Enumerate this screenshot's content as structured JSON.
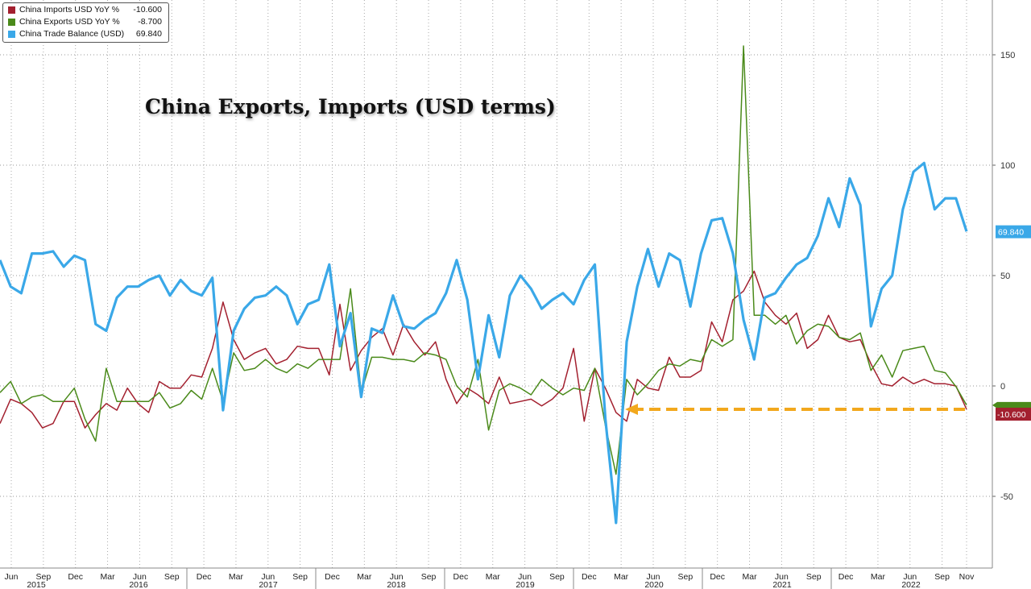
{
  "title": "China Exports, Imports (USD terms)",
  "legend": [
    {
      "name": "China Imports USD YoY %",
      "value": "-10.600",
      "color": "#a3202f"
    },
    {
      "name": "China Exports USD YoY %",
      "value": "-8.700",
      "color": "#4a8a1a"
    },
    {
      "name": "China Trade Balance (USD)",
      "value": "69.840",
      "color": "#3aa8e8"
    }
  ],
  "chart_data": {
    "type": "line",
    "ylim": [
      -75,
      175
    ],
    "y_ticks": [
      150,
      100,
      50,
      0,
      -50
    ],
    "grid": true,
    "x_month_labels": [
      "Jun",
      "Sep",
      "Dec",
      "Mar",
      "Jun",
      "Sep",
      "Dec",
      "Mar",
      "Jun",
      "Sep",
      "Dec",
      "Mar",
      "Jun",
      "Sep",
      "Dec",
      "Mar",
      "Jun",
      "Sep",
      "Dec",
      "Mar",
      "Jun",
      "Sep",
      "Dec",
      "Mar",
      "Jun",
      "Sep",
      "Dec",
      "Mar",
      "Jun",
      "Sep",
      "Nov"
    ],
    "x_year_labels": [
      "2015",
      "2016",
      "2017",
      "2018",
      "2019",
      "2020",
      "2021",
      "2022"
    ],
    "series": [
      {
        "name": "China Trade Balance (USD)",
        "color": "#3aa8e8",
        "last_value_label": "69.840",
        "values": [
          57,
          45,
          42,
          60,
          60,
          61,
          54,
          59,
          57,
          28,
          25,
          40,
          45,
          45,
          48,
          50,
          41,
          48,
          43,
          41,
          49,
          -11,
          25,
          35,
          40,
          41,
          45,
          41,
          28,
          37,
          39,
          55,
          18,
          33,
          -5,
          26,
          24,
          41,
          27,
          26,
          30,
          33,
          42,
          57,
          39,
          3,
          32,
          13,
          41,
          50,
          44,
          35,
          39,
          42,
          37,
          48,
          55,
          -15,
          -62,
          20,
          45,
          62,
          45,
          60,
          57,
          36,
          60,
          75,
          76,
          60,
          30,
          12,
          40,
          42,
          49,
          55,
          58,
          68,
          85,
          72,
          94,
          82,
          27,
          44,
          50,
          80,
          97,
          101,
          80,
          85,
          85,
          70
        ]
      },
      {
        "name": "China Imports USD YoY %",
        "color": "#a3202f",
        "last_value_label": "-10.600",
        "values": [
          -17,
          -6,
          -8,
          -12,
          -19,
          -17,
          -7,
          -7,
          -19,
          -13,
          -8,
          -11,
          -1,
          -8,
          -12,
          2,
          -1,
          -1,
          5,
          4,
          17,
          38,
          21,
          12,
          15,
          17,
          10,
          12,
          18,
          17,
          17,
          5,
          37,
          7,
          16,
          22,
          26,
          14,
          28,
          20,
          14,
          20,
          3,
          -8,
          -1,
          -4,
          -8,
          4,
          -8,
          -7,
          -6,
          -9,
          -6,
          -1,
          17,
          -16,
          8,
          -1,
          -12,
          -16,
          3,
          -1,
          -2,
          13,
          4,
          4,
          7,
          29,
          20,
          39,
          43,
          52,
          38,
          32,
          28,
          33,
          17,
          21,
          32,
          22,
          20,
          21,
          10,
          1,
          0,
          4,
          1,
          3,
          1,
          1,
          0,
          -10.6
        ]
      },
      {
        "name": "China Exports USD YoY %",
        "color": "#4a8a1a",
        "last_value_label": "-8.700",
        "values": [
          -3,
          2,
          -8,
          -5,
          -4,
          -7,
          -7,
          -1,
          -15,
          -25,
          8,
          -7,
          -7,
          -7,
          -7,
          -3,
          -10,
          -8,
          -2,
          -6,
          8,
          -7,
          15,
          7,
          8,
          12,
          8,
          6,
          10,
          8,
          12,
          12,
          12,
          44,
          -3,
          13,
          13,
          12,
          12,
          11,
          15,
          14,
          12,
          0,
          -5,
          12,
          -20,
          -2,
          1,
          -1,
          -4,
          3,
          -1,
          -4,
          -1,
          -2,
          8,
          -18,
          -40,
          3,
          -4,
          1,
          7,
          10,
          9,
          12,
          11,
          21,
          18,
          21,
          154,
          32,
          32,
          28,
          32,
          19,
          25,
          28,
          27,
          22,
          21,
          24,
          7,
          14,
          4,
          16,
          17,
          18,
          7,
          6,
          -0.3,
          -8.7
        ]
      }
    ]
  }
}
